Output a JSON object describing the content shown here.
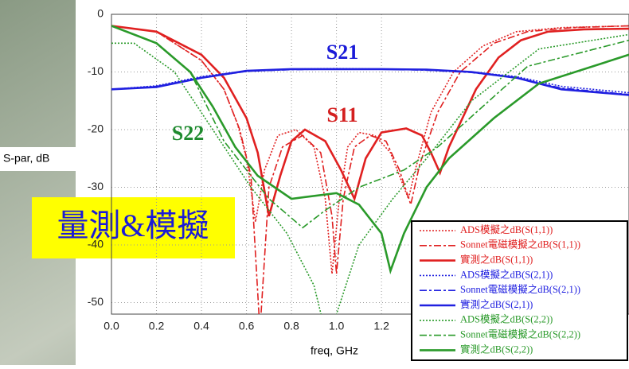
{
  "chart_data": {
    "type": "line",
    "ylabel": "S-par, dB",
    "xlabel": "freq, GHz",
    "badge": "量測&模擬",
    "annotations": [
      {
        "text": "S21",
        "color": "#1a1ad8"
      },
      {
        "text": "S11",
        "color": "#d42020"
      },
      {
        "text": "S22",
        "color": "#1e8a2e"
      }
    ],
    "xlim": [
      0,
      2.3
    ],
    "ylim": [
      -52,
      0
    ],
    "xticks": [
      {
        "value": 0,
        "label": "0.0"
      },
      {
        "value": 0.2,
        "label": "0.2"
      },
      {
        "value": 0.4,
        "label": "0.4"
      },
      {
        "value": 0.6,
        "label": "0.6"
      },
      {
        "value": 0.8,
        "label": "0.8"
      },
      {
        "value": 1,
        "label": "1.0"
      },
      {
        "value": 1.2,
        "label": "1.2"
      }
    ],
    "yticks": [
      0,
      -10,
      -20,
      -30,
      -40,
      -50
    ],
    "grid": true,
    "series": [
      {
        "name": "ADS模擬之dB(S(1,1))",
        "color": "#e02020",
        "dash": "dotted",
        "x": [
          0,
          0.2,
          0.4,
          0.5,
          0.56,
          0.6,
          0.64,
          0.68,
          0.74,
          0.82,
          0.9,
          0.95,
          0.98,
          1.01,
          1.05,
          1.1,
          1.17,
          1.24,
          1.3,
          1.32,
          1.35,
          1.42,
          1.52,
          1.65,
          1.8,
          2.0,
          2.3
        ],
        "values": [
          -2,
          -3,
          -8,
          -13,
          -19,
          -25,
          -36,
          -27,
          -21,
          -20,
          -23,
          -32,
          -45,
          -33,
          -23,
          -20.5,
          -21,
          -24,
          -30,
          -32,
          -27,
          -17,
          -10,
          -5.5,
          -3,
          -2.3,
          -2
        ]
      },
      {
        "name": "Sonnet電磁模擬之dB(S(1,1))",
        "color": "#e02020",
        "dash": "dashed",
        "x": [
          0,
          0.2,
          0.4,
          0.5,
          0.57,
          0.62,
          0.66,
          0.7,
          0.76,
          0.85,
          0.93,
          0.98,
          1.0,
          1.03,
          1.08,
          1.15,
          1.22,
          1.28,
          1.33,
          1.37,
          1.45,
          1.55,
          1.7,
          1.85,
          2.05,
          2.3
        ],
        "values": [
          -2,
          -3,
          -8,
          -13,
          -20,
          -28,
          -55,
          -30,
          -23,
          -21,
          -24,
          -35,
          -45,
          -32,
          -23,
          -21,
          -22,
          -27,
          -33,
          -26,
          -17,
          -10,
          -5,
          -3,
          -2.3,
          -2
        ]
      },
      {
        "name": "實測之dB(S(1,1))",
        "color": "#e02020",
        "dash": "solid",
        "x": [
          0,
          0.2,
          0.4,
          0.5,
          0.6,
          0.65,
          0.7,
          0.75,
          0.8,
          0.86,
          0.95,
          1.02,
          1.08,
          1.13,
          1.2,
          1.31,
          1.38,
          1.42,
          1.46,
          1.5,
          1.56,
          1.62,
          1.72,
          1.82,
          1.94,
          2.1,
          2.3
        ],
        "values": [
          -2,
          -3,
          -7,
          -11,
          -18,
          -24,
          -35,
          -28,
          -22,
          -20,
          -22,
          -27,
          -32,
          -25,
          -20.5,
          -19.8,
          -21,
          -24,
          -27.5,
          -23,
          -18,
          -13,
          -7.5,
          -4.5,
          -3,
          -2.6,
          -2.5
        ]
      },
      {
        "name": "ADS模擬之dB(S(2,1))",
        "color": "#2020e0",
        "dash": "dotted",
        "x": [
          0,
          0.2,
          0.4,
          0.6,
          0.8,
          1.0,
          1.2,
          1.4,
          1.6,
          1.8,
          2.0,
          2.3
        ],
        "values": [
          -13,
          -12.4,
          -10.8,
          -9.8,
          -9.5,
          -9.4,
          -9.5,
          -9.6,
          -10,
          -10.8,
          -12.5,
          -13.6
        ]
      },
      {
        "name": "Sonnet電磁模擬之dB(S(2,1))",
        "color": "#2020e0",
        "dash": "dashed",
        "x": [
          0,
          0.2,
          0.4,
          0.6,
          0.8,
          1.0,
          1.2,
          1.4,
          1.6,
          1.8,
          2.0,
          2.3
        ],
        "values": [
          -13,
          -12.5,
          -11,
          -9.9,
          -9.6,
          -9.5,
          -9.5,
          -9.7,
          -10.1,
          -11,
          -12.8,
          -13.9
        ]
      },
      {
        "name": "實測之dB(S(2,1))",
        "color": "#2020e0",
        "dash": "solid",
        "x": [
          0,
          0.2,
          0.4,
          0.6,
          0.8,
          1.0,
          1.2,
          1.4,
          1.6,
          1.8,
          2.0,
          2.3
        ],
        "values": [
          -13,
          -12.6,
          -11,
          -9.8,
          -9.5,
          -9.5,
          -9.5,
          -9.6,
          -10,
          -11,
          -13,
          -14
        ]
      },
      {
        "name": "ADS模擬之dB(S(2,2))",
        "color": "#2a9a2a",
        "dash": "dotted",
        "x": [
          0,
          0.1,
          0.28,
          0.45,
          0.62,
          0.78,
          0.9,
          0.95,
          1.0,
          1.1,
          1.25,
          1.4,
          1.6,
          1.9,
          2.3
        ],
        "values": [
          -5,
          -5,
          -10,
          -20,
          -30,
          -38,
          -47,
          -55,
          -52,
          -40,
          -32,
          -25,
          -15,
          -6,
          -3.5
        ]
      },
      {
        "name": "Sonnet電磁模擬之dB(S(2,2))",
        "color": "#2a9a2a",
        "dash": "dashed",
        "x": [
          0,
          0.2,
          0.35,
          0.5,
          0.7,
          0.85,
          0.95,
          1.1,
          1.3,
          1.45,
          1.65,
          1.85,
          2.3
        ],
        "values": [
          -2,
          -5,
          -10,
          -22,
          -32,
          -37,
          -34,
          -30,
          -27,
          -23,
          -16,
          -9,
          -4.5
        ]
      },
      {
        "name": "實測之dB(S(2,2))",
        "color": "#2a9a2a",
        "dash": "solid",
        "x": [
          0,
          0.2,
          0.35,
          0.45,
          0.55,
          0.65,
          0.8,
          1.0,
          1.1,
          1.2,
          1.24,
          1.3,
          1.4,
          1.5,
          1.7,
          1.9,
          2.3
        ],
        "values": [
          -2,
          -5,
          -10,
          -16,
          -23,
          -28,
          -32,
          -31,
          -33,
          -38,
          -44.5,
          -38,
          -30,
          -25,
          -18,
          -12,
          -7
        ]
      }
    ]
  }
}
